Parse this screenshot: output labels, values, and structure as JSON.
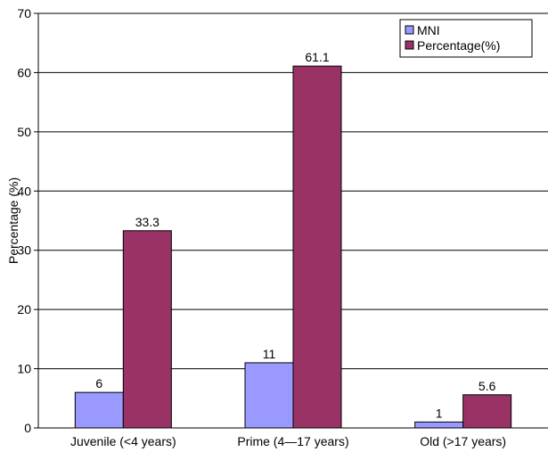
{
  "chart_data": {
    "type": "bar",
    "categories": [
      "Juvenile (<4 years)",
      "Prime (4—17 years)",
      "Old (>17 years)"
    ],
    "series": [
      {
        "name": "MNI",
        "values": [
          6,
          11,
          1
        ],
        "labels": [
          "6",
          "11",
          "1"
        ],
        "color": "#9999ff"
      },
      {
        "name": "Percentage(%)",
        "values": [
          33.3,
          61.1,
          5.6
        ],
        "labels": [
          "33.3",
          "61.1",
          "5.6"
        ],
        "color": "#993366"
      }
    ],
    "title": "",
    "xlabel": "",
    "ylabel": "Percentage (%)",
    "ylim": [
      0,
      70
    ],
    "yticks": [
      0,
      10,
      20,
      30,
      40,
      50,
      60,
      70
    ],
    "grid": true,
    "legend": "top-right"
  }
}
